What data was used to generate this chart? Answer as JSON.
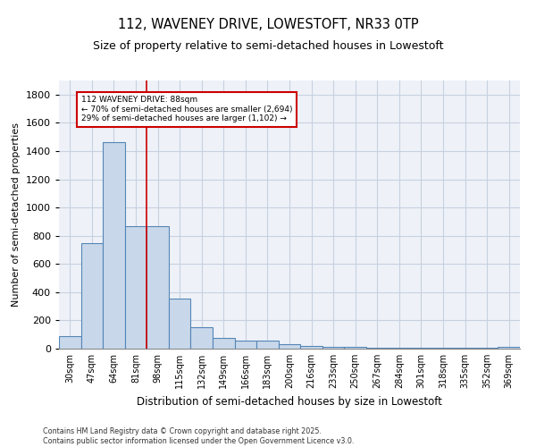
{
  "title": "112, WAVENEY DRIVE, LOWESTOFT, NR33 0TP",
  "subtitle": "Size of property relative to semi-detached houses in Lowestoft",
  "xlabel": "Distribution of semi-detached houses by size in Lowestoft",
  "ylabel": "Number of semi-detached properties",
  "categories": [
    "30sqm",
    "47sqm",
    "64sqm",
    "81sqm",
    "98sqm",
    "115sqm",
    "132sqm",
    "149sqm",
    "166sqm",
    "183sqm",
    "200sqm",
    "216sqm",
    "233sqm",
    "250sqm",
    "267sqm",
    "284sqm",
    "301sqm",
    "318sqm",
    "335sqm",
    "352sqm",
    "369sqm"
  ],
  "values": [
    90,
    750,
    1460,
    870,
    870,
    355,
    150,
    75,
    55,
    55,
    30,
    20,
    15,
    10,
    5,
    5,
    5,
    5,
    5,
    5,
    10
  ],
  "bar_color": "#c8d8ea",
  "bar_edge_color": "#5585b5",
  "bar_edge_width": 0.8,
  "red_line_x": 3.5,
  "annotation_title": "112 WAVENEY DRIVE: 88sqm",
  "annotation_line2": "← 70% of semi-detached houses are smaller (2,694)",
  "annotation_line3": "29% of semi-detached houses are larger (1,102) →",
  "annotation_box_color": "#ffffff",
  "annotation_border_color": "#cc0000",
  "ylim": [
    0,
    1900
  ],
  "yticks": [
    0,
    200,
    400,
    600,
    800,
    1000,
    1200,
    1400,
    1600,
    1800
  ],
  "grid_color": "#c8d0e0",
  "bg_color": "#eef2f8",
  "footer_line1": "Contains HM Land Registry data © Crown copyright and database right 2025.",
  "footer_line2": "Contains public sector information licensed under the Open Government Licence v3.0.",
  "title_fontsize": 10.5,
  "subtitle_fontsize": 9,
  "tick_fontsize": 7,
  "xlabel_fontsize": 8.5,
  "ylabel_fontsize": 8
}
